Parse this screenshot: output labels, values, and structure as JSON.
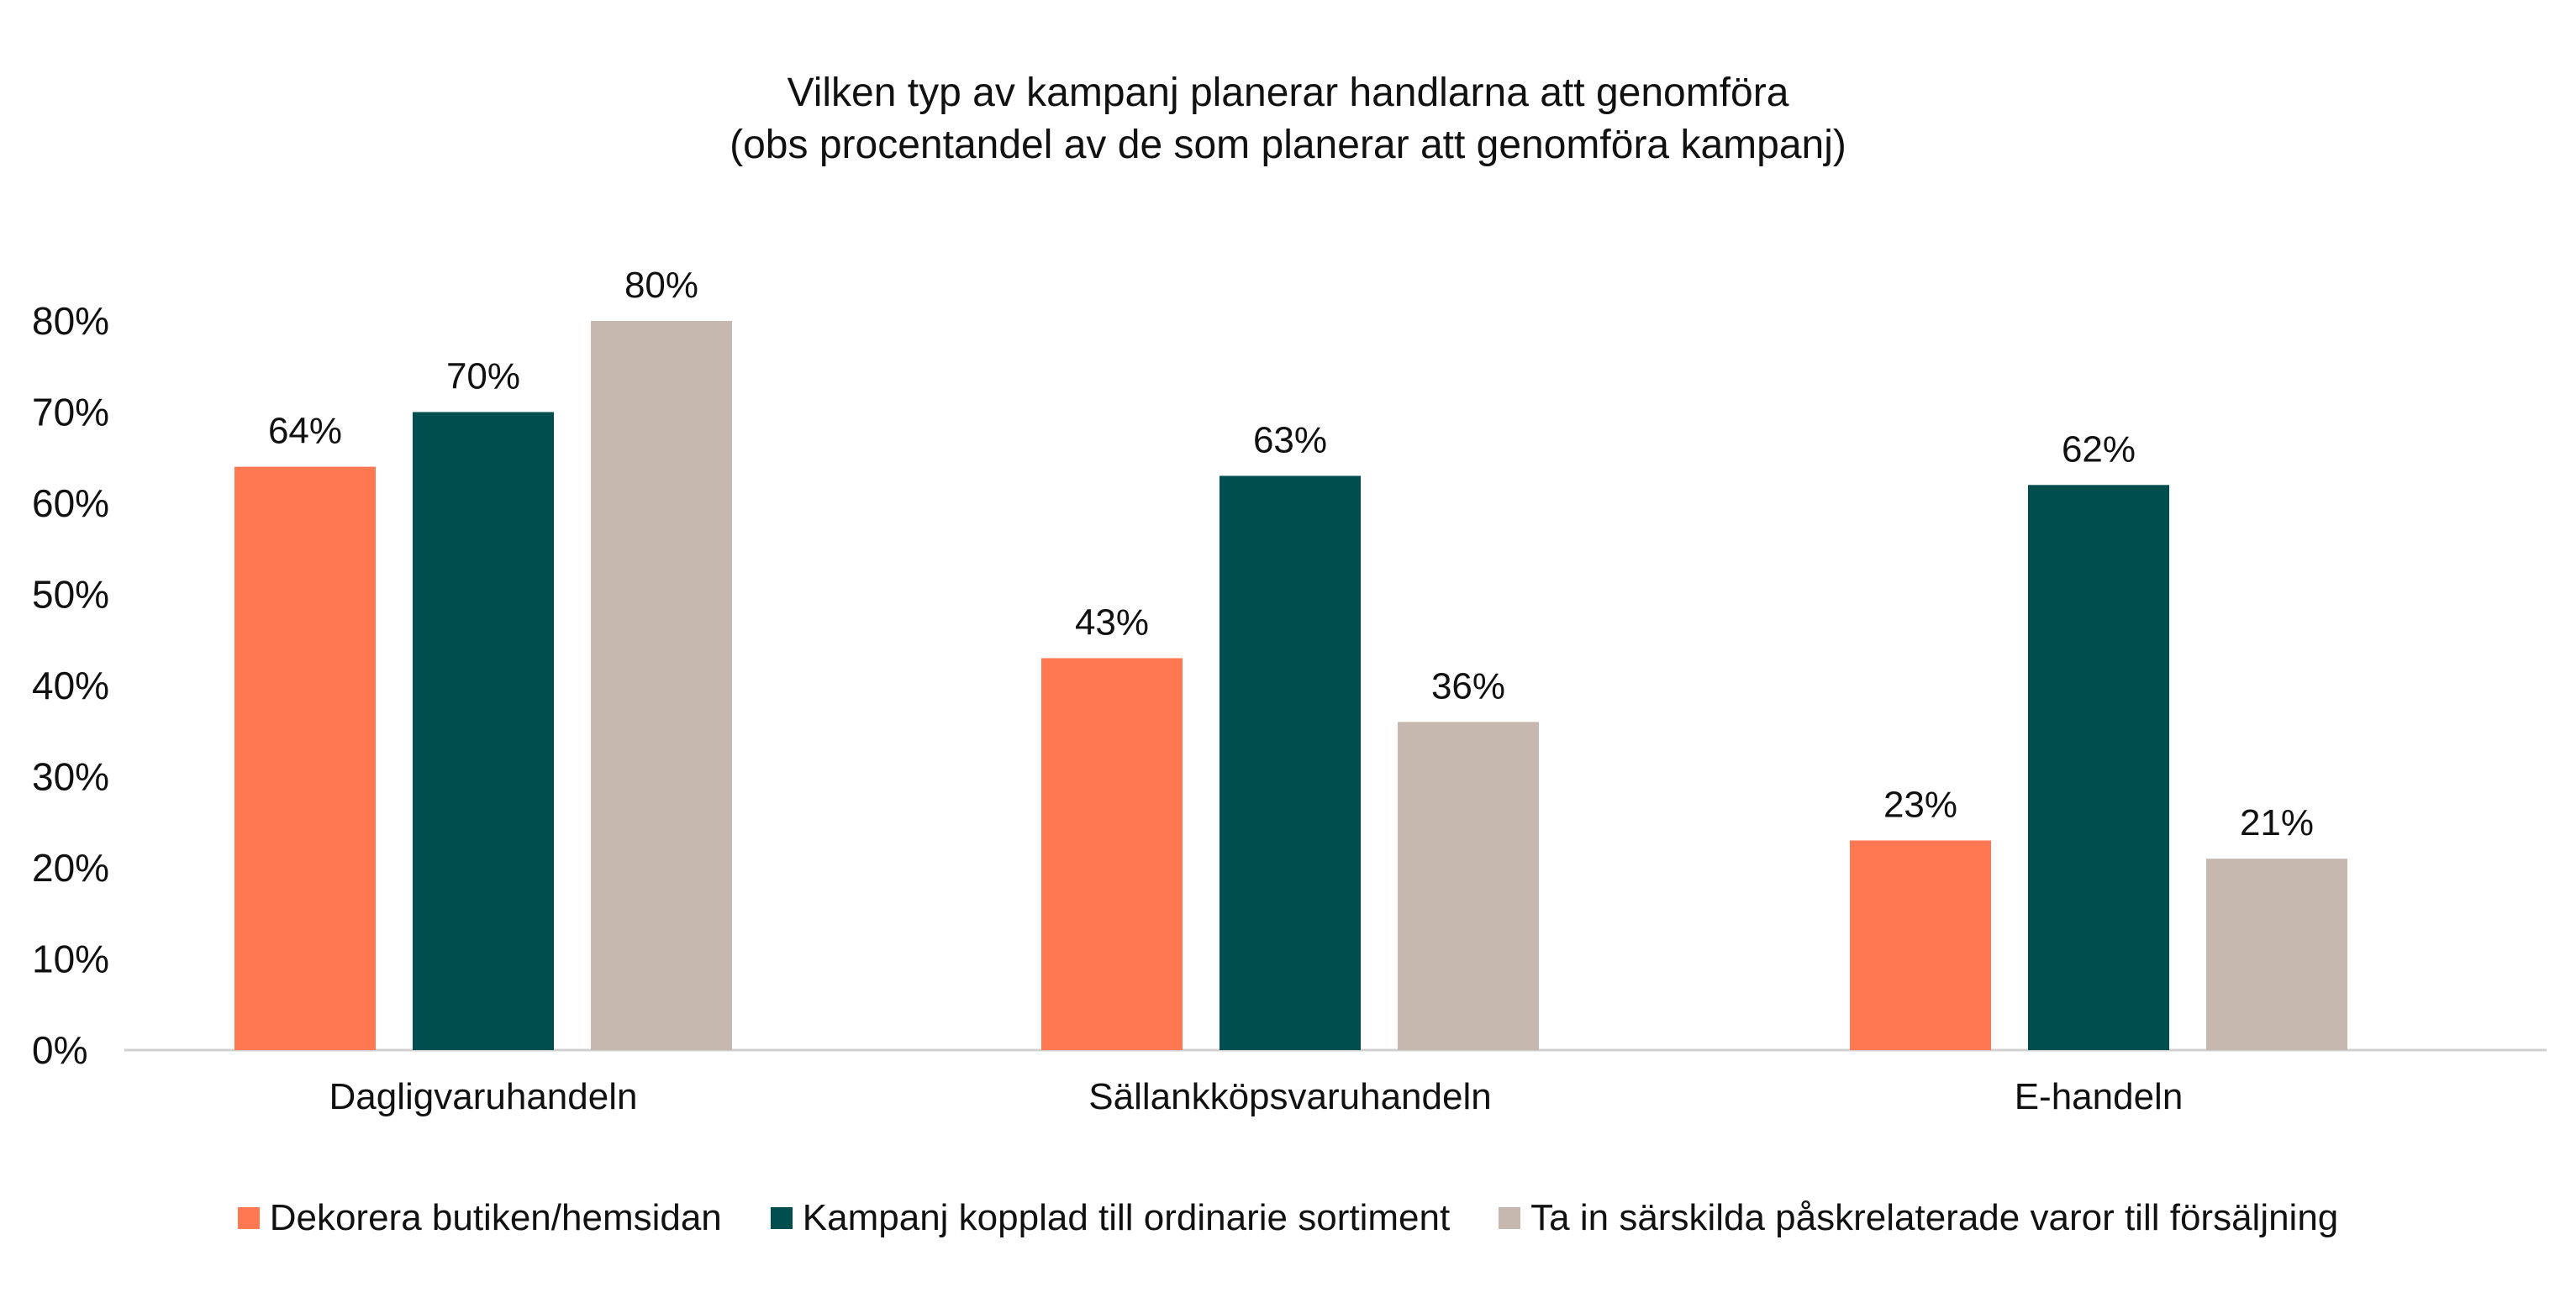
{
  "chart_data": {
    "type": "bar",
    "title_lines": [
      "Vilken typ av kampanj planerar handlarna att genomföra",
      "(obs procentandel av de som planerar att genomföra kampanj)"
    ],
    "categories": [
      "Dagligvaruhandeln",
      "Sällankköpsvaruhandeln",
      "E-handeln"
    ],
    "series": [
      {
        "name": "Dekorera butiken/hemsidan",
        "color": "#FF7852",
        "values": [
          64,
          43,
          23
        ]
      },
      {
        "name": "Kampanj kopplad till ordinarie sortiment",
        "color": "#004E4E",
        "values": [
          70,
          63,
          62
        ]
      },
      {
        "name": "Ta in särskilda påskrelaterade varor till försäljning",
        "color": "#C6B8AE",
        "values": [
          80,
          36,
          21
        ]
      }
    ],
    "data_labels": [
      [
        "64%",
        "43%",
        "23%"
      ],
      [
        "70%",
        "63%",
        "62%"
      ],
      [
        "80%",
        "36%",
        "21%"
      ]
    ],
    "yticks": [
      "0%",
      "10%",
      "20%",
      "30%",
      "40%",
      "50%",
      "60%",
      "70%",
      "80%"
    ],
    "ylim": [
      0,
      80
    ],
    "grid": false,
    "legend_position": "bottom"
  }
}
